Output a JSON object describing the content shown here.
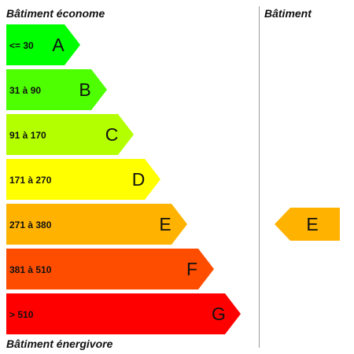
{
  "labels": {
    "top_left": "Bâtiment économe",
    "top_right": "Bâtiment",
    "bottom_left": "Bâtiment énergivore"
  },
  "classes": [
    {
      "letter": "A",
      "range": "<= 30",
      "color": "#00ff00"
    },
    {
      "letter": "B",
      "range": "31 à 90",
      "color": "#4dff00"
    },
    {
      "letter": "C",
      "range": "91 à 170",
      "color": "#b3ff00"
    },
    {
      "letter": "D",
      "range": "171 à 270",
      "color": "#ffff00"
    },
    {
      "letter": "E",
      "range": "271 à 380",
      "color": "#ffb300"
    },
    {
      "letter": "F",
      "range": "381 à 510",
      "color": "#ff4d00"
    },
    {
      "letter": "G",
      "range": "> 510",
      "color": "#ff0000"
    }
  ],
  "indicator": {
    "letter": "E",
    "color": "#ffb300"
  }
}
